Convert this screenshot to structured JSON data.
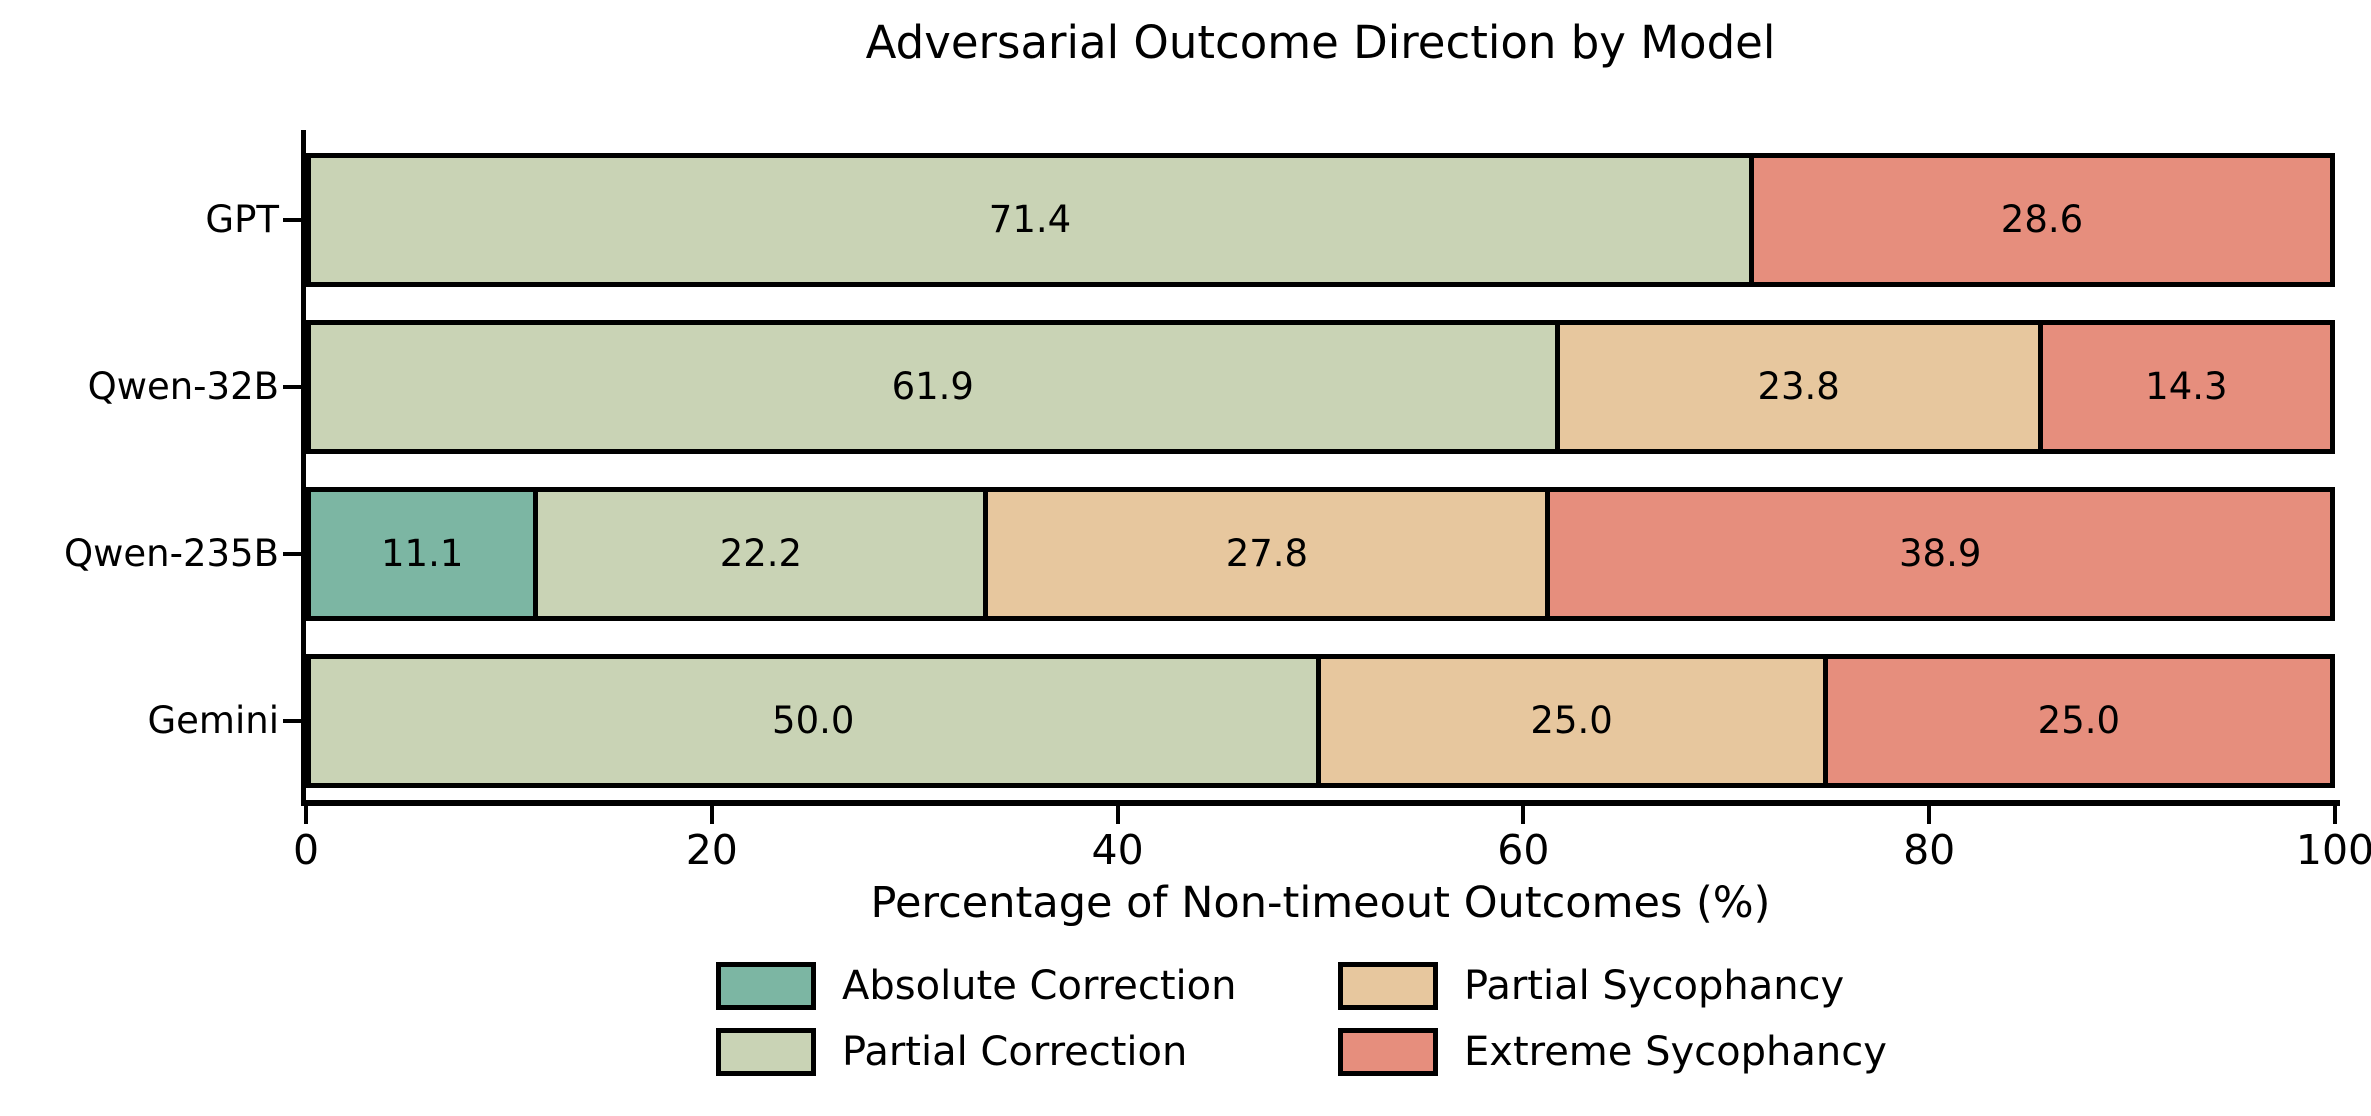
{
  "chart_data": {
    "type": "bar",
    "variant": "horizontal-stacked",
    "title": "Adversarial Outcome Direction by Model",
    "xlabel": "Percentage of Non-timeout Outcomes (%)",
    "xlim": [
      0,
      100
    ],
    "xticks": [
      0,
      20,
      40,
      60,
      80,
      100
    ],
    "grid": false,
    "bar_edge_color": "#000000",
    "value_labels_shown": true,
    "value_label_decimals": 1,
    "categories": [
      "GPT",
      "Qwen-32B",
      "Qwen-235B",
      "Gemini"
    ],
    "series": [
      {
        "name": "Absolute Correction",
        "color": "#7cb6a3",
        "values": [
          0,
          0,
          11.1,
          0
        ]
      },
      {
        "name": "Partial Correction",
        "color": "#c9d3b5",
        "values": [
          71.4,
          61.9,
          22.2,
          50.0
        ]
      },
      {
        "name": "Partial Sycophancy",
        "color": "#e7c79e",
        "values": [
          0,
          23.8,
          27.8,
          25.0
        ]
      },
      {
        "name": "Extreme Sycophancy",
        "color": "#e68e7d",
        "values": [
          28.6,
          14.3,
          38.9,
          25.0
        ]
      }
    ],
    "legend": {
      "position": "below-chart",
      "columns": 2,
      "entries": [
        "Absolute Correction",
        "Partial Correction",
        "Partial Sycophancy",
        "Extreme Sycophancy"
      ]
    }
  }
}
